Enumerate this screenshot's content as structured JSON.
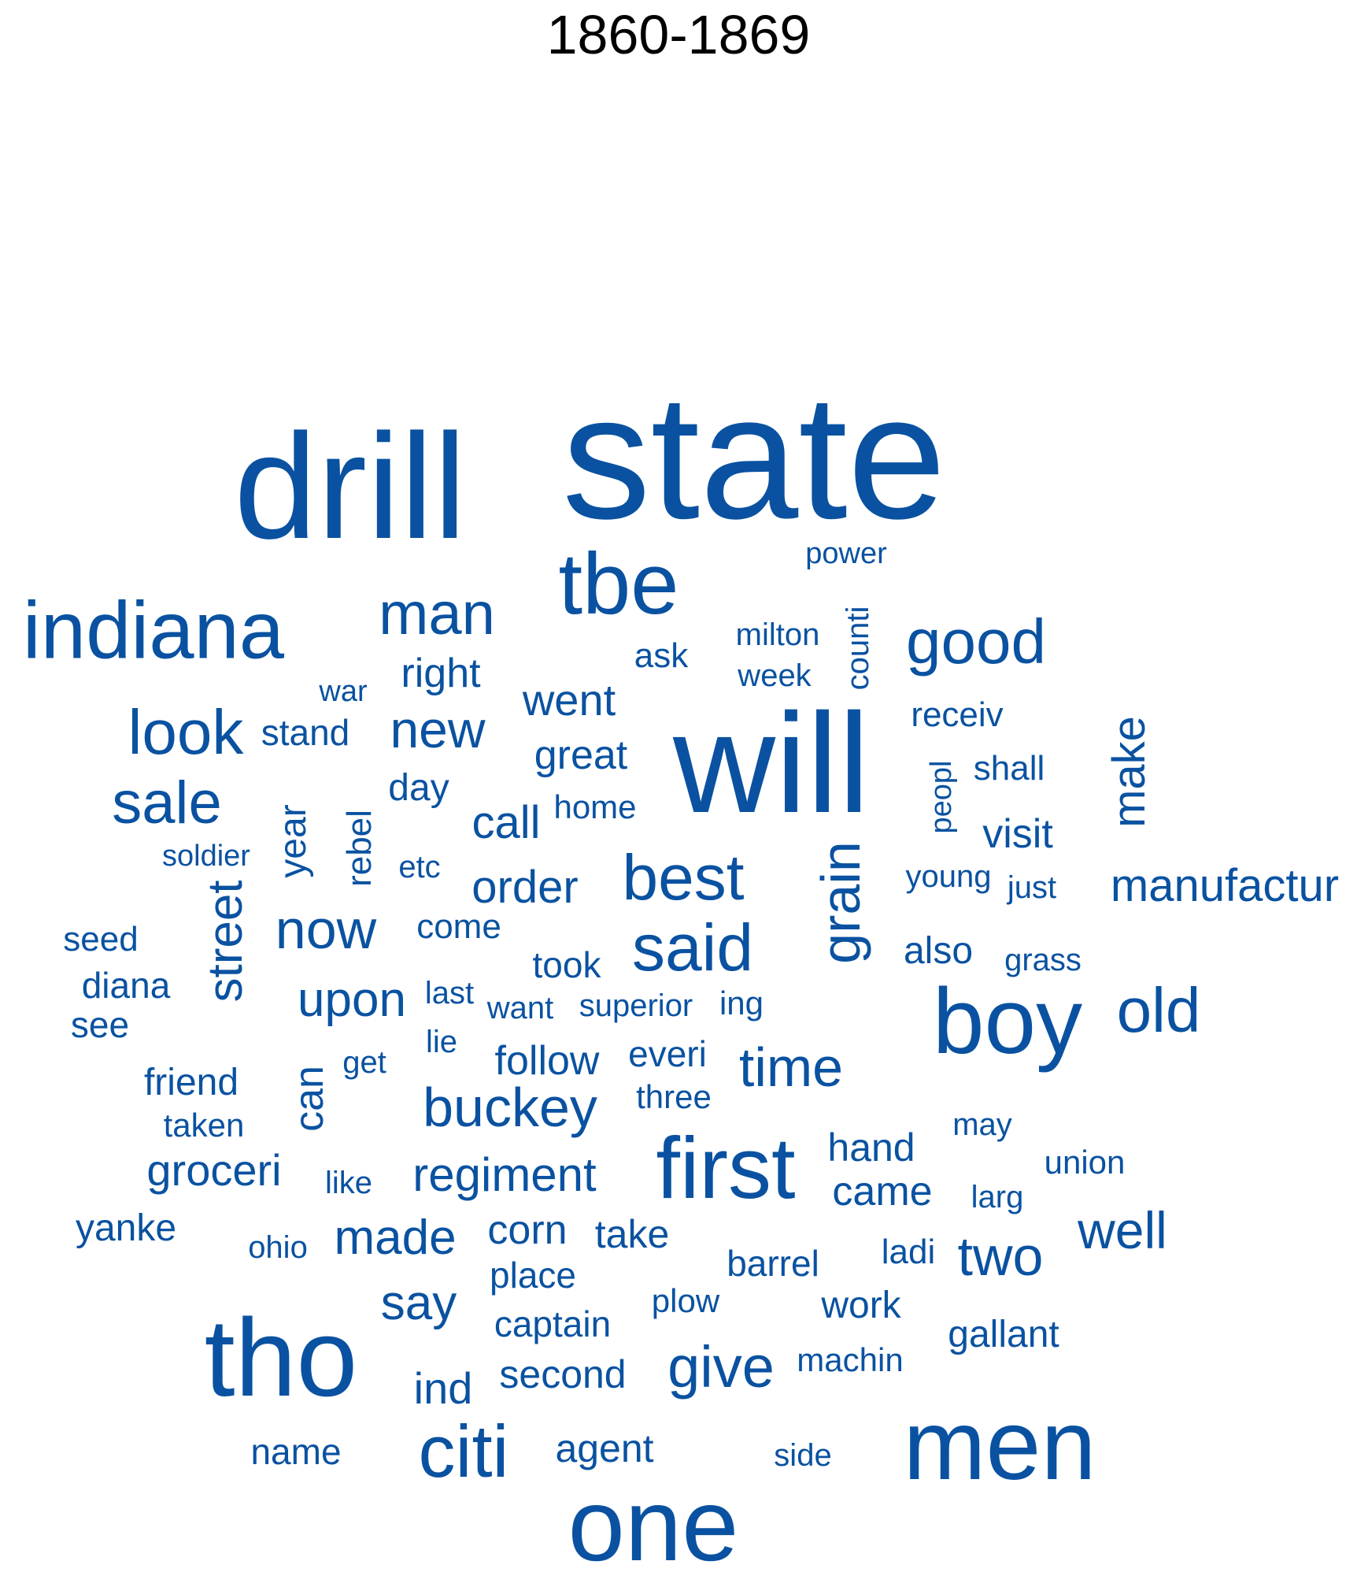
{
  "title": "1860-1869",
  "color": "#0a52a1",
  "words": [
    {
      "text": "state"
    },
    {
      "text": "drill"
    },
    {
      "text": "will"
    },
    {
      "text": "tbe"
    },
    {
      "text": "indiana"
    },
    {
      "text": "man"
    },
    {
      "text": "power"
    },
    {
      "text": "good"
    },
    {
      "text": "counti"
    },
    {
      "text": "milton"
    },
    {
      "text": "week"
    },
    {
      "text": "ask"
    },
    {
      "text": "right"
    },
    {
      "text": "war"
    },
    {
      "text": "went"
    },
    {
      "text": "look"
    },
    {
      "text": "stand"
    },
    {
      "text": "new"
    },
    {
      "text": "receiv"
    },
    {
      "text": "make"
    },
    {
      "text": "great"
    },
    {
      "text": "shall"
    },
    {
      "text": "peopl"
    },
    {
      "text": "sale"
    },
    {
      "text": "day"
    },
    {
      "text": "home"
    },
    {
      "text": "call"
    },
    {
      "text": "visit"
    },
    {
      "text": "year"
    },
    {
      "text": "rebel"
    },
    {
      "text": "soldier"
    },
    {
      "text": "etc"
    },
    {
      "text": "order"
    },
    {
      "text": "best"
    },
    {
      "text": "young"
    },
    {
      "text": "just"
    },
    {
      "text": "manufactur"
    },
    {
      "text": "grain"
    },
    {
      "text": "street"
    },
    {
      "text": "now"
    },
    {
      "text": "come"
    },
    {
      "text": "said"
    },
    {
      "text": "seed"
    },
    {
      "text": "also"
    },
    {
      "text": "took"
    },
    {
      "text": "grass"
    },
    {
      "text": "diana"
    },
    {
      "text": "upon"
    },
    {
      "text": "last"
    },
    {
      "text": "want"
    },
    {
      "text": "superior"
    },
    {
      "text": "ing"
    },
    {
      "text": "boy"
    },
    {
      "text": "old"
    },
    {
      "text": "see"
    },
    {
      "text": "lie"
    },
    {
      "text": "follow"
    },
    {
      "text": "everi"
    },
    {
      "text": "time"
    },
    {
      "text": "get"
    },
    {
      "text": "can"
    },
    {
      "text": "friend"
    },
    {
      "text": "buckey"
    },
    {
      "text": "three"
    },
    {
      "text": "taken"
    },
    {
      "text": "may"
    },
    {
      "text": "first"
    },
    {
      "text": "hand"
    },
    {
      "text": "union"
    },
    {
      "text": "groceri"
    },
    {
      "text": "regiment"
    },
    {
      "text": "like"
    },
    {
      "text": "came"
    },
    {
      "text": "larg"
    },
    {
      "text": "yanke"
    },
    {
      "text": "well"
    },
    {
      "text": "made"
    },
    {
      "text": "corn"
    },
    {
      "text": "take"
    },
    {
      "text": "ohio"
    },
    {
      "text": "ladi"
    },
    {
      "text": "two"
    },
    {
      "text": "barrel"
    },
    {
      "text": "place"
    },
    {
      "text": "say"
    },
    {
      "text": "plow"
    },
    {
      "text": "work"
    },
    {
      "text": "tho"
    },
    {
      "text": "captain"
    },
    {
      "text": "gallant"
    },
    {
      "text": "give"
    },
    {
      "text": "machin"
    },
    {
      "text": "second"
    },
    {
      "text": "ind"
    },
    {
      "text": "name"
    },
    {
      "text": "agent"
    },
    {
      "text": "side"
    },
    {
      "text": "citi"
    },
    {
      "text": "men"
    },
    {
      "text": "one"
    }
  ]
}
